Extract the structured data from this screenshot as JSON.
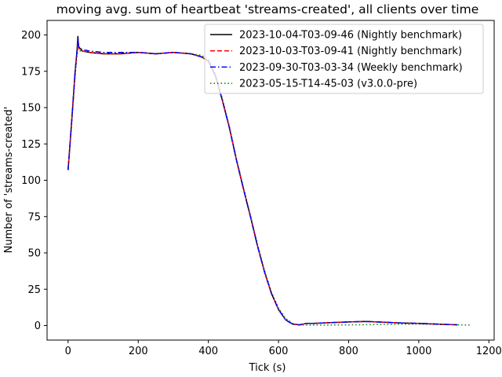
{
  "chart_data": {
    "type": "line",
    "title": "moving avg. sum of heartbeat 'streams-created', all clients over time",
    "xlabel": "Tick (s)",
    "ylabel": "Number of 'streams-created'",
    "xlim": [
      -60,
      1215
    ],
    "ylim": [
      -10,
      210
    ],
    "xticks": [
      0,
      200,
      400,
      600,
      800,
      1000,
      1200
    ],
    "yticks": [
      0,
      25,
      50,
      75,
      100,
      125,
      150,
      175,
      200
    ],
    "grid": false,
    "legend_position": "top-right",
    "series": [
      {
        "name": "2023-10-04-T03-09-46 (Nightly benchmark)",
        "color": "#000000",
        "dash": "solid",
        "x": [
          0,
          10,
          20,
          25,
          28,
          30,
          40,
          60,
          100,
          150,
          200,
          250,
          300,
          350,
          380,
          400,
          420,
          440,
          460,
          480,
          500,
          520,
          540,
          560,
          580,
          600,
          620,
          640,
          660,
          680,
          700,
          750,
          800,
          850,
          900,
          950,
          1000,
          1050,
          1100,
          1110
        ],
        "y": [
          107,
          140,
          175,
          188,
          199,
          192,
          189,
          188,
          187,
          187,
          188,
          187,
          188,
          187,
          185,
          182,
          172,
          155,
          136,
          114,
          94,
          75,
          55,
          37,
          22,
          11,
          4,
          1,
          0.5,
          1.5,
          1.5,
          2,
          2.5,
          2.8,
          2.3,
          1.8,
          1.5,
          1,
          0.6,
          0.5
        ]
      },
      {
        "name": "2023-10-03-T03-09-41 (Nightly benchmark)",
        "color": "#ff0000",
        "dash": "dashed",
        "x": [
          0,
          10,
          20,
          25,
          28,
          30,
          40,
          60,
          100,
          150,
          200,
          250,
          300,
          350,
          380,
          400,
          420,
          440,
          460,
          480,
          500,
          520,
          540,
          560,
          580,
          600,
          620,
          640,
          660,
          680,
          700,
          750,
          800,
          850,
          900,
          950,
          1000,
          1050,
          1100,
          1110
        ],
        "y": [
          107,
          140,
          175,
          187,
          196,
          191,
          189,
          188,
          187,
          187,
          188,
          187,
          188,
          187,
          185,
          182,
          172,
          155,
          136,
          114,
          94,
          75,
          55,
          37,
          22,
          11,
          4,
          1,
          0.5,
          1.5,
          1.5,
          2,
          2.5,
          2.8,
          2.3,
          1.8,
          1.5,
          1,
          0.6,
          0.5
        ]
      },
      {
        "name": "2023-09-30-T03-03-34 (Weekly benchmark)",
        "color": "#0000ff",
        "dash": "dashdot",
        "x": [
          0,
          10,
          20,
          25,
          28,
          30,
          40,
          60,
          100,
          150,
          200,
          250,
          300,
          350,
          380,
          400,
          420,
          440,
          460,
          480,
          500,
          520,
          540,
          560,
          580,
          600,
          620,
          640,
          660,
          680,
          700,
          750,
          800,
          850,
          900,
          950,
          1000,
          1050,
          1100,
          1110
        ],
        "y": [
          107,
          140,
          175,
          188,
          198,
          192,
          190,
          189,
          188,
          188,
          188,
          187,
          188,
          187,
          185,
          182,
          172,
          155,
          136,
          114,
          94,
          75,
          55,
          37,
          22,
          11,
          4,
          1,
          0.5,
          1.5,
          1.5,
          2,
          2.5,
          2.8,
          2.3,
          1.8,
          1.5,
          1,
          0.6,
          0.5
        ]
      },
      {
        "name": "2023-05-15-T14-45-03 (v3.0.0-pre)",
        "color": "#008000",
        "dash": "dotted",
        "x": [
          0,
          10,
          20,
          25,
          28,
          30,
          40,
          60,
          100,
          150,
          200,
          250,
          300,
          350,
          380,
          400,
          420,
          440,
          460,
          480,
          500,
          520,
          540,
          560,
          580,
          600,
          620,
          640,
          660,
          680,
          700,
          750,
          800,
          850,
          900,
          950,
          1000,
          1050,
          1100,
          1150
        ],
        "y": [
          107,
          138,
          172,
          185,
          190,
          189,
          189,
          188,
          187,
          187,
          188,
          187,
          188,
          187,
          186,
          183,
          173,
          156,
          137,
          115,
          95,
          76,
          56,
          38,
          23,
          12,
          5,
          1.5,
          0.5,
          0.3,
          0.3,
          0.4,
          0.5,
          0.6,
          0.8,
          0.9,
          1,
          0.8,
          0.6,
          0.3
        ]
      }
    ]
  }
}
